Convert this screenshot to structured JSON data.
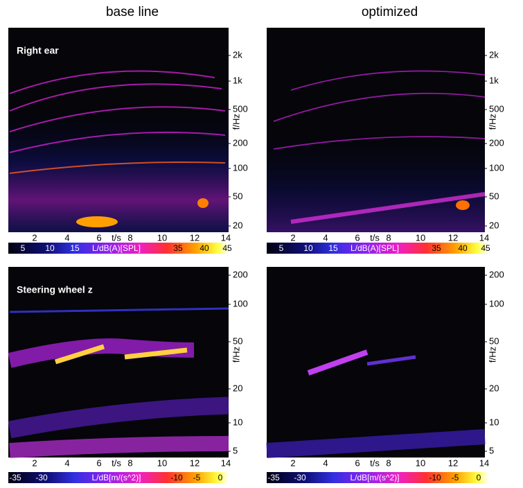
{
  "columns": [
    "base line",
    "optimized"
  ],
  "rows": [
    {
      "label": "Right ear",
      "ylabel": "f/Hz",
      "xlabel": "t/s",
      "yticks": [
        "2k",
        "1k",
        "500",
        "200",
        "100",
        "50",
        "20"
      ],
      "xticks": [
        "2",
        "4",
        "6",
        "8",
        "10",
        "12",
        "14"
      ],
      "colorbar": {
        "title": "L/dB(A)[SPL]",
        "labels": [
          "5",
          "10",
          "15",
          "35",
          "40",
          "45"
        ]
      }
    },
    {
      "label": "Steering wheel z",
      "ylabel": "f/Hz",
      "xlabel": "t/s",
      "yticks": [
        "200",
        "100",
        "50",
        "20",
        "10",
        "5"
      ],
      "xticks": [
        "2",
        "4",
        "6",
        "8",
        "10",
        "12",
        "14"
      ],
      "colorbar": {
        "title": "L/dB[m/(s^2)]",
        "labels": [
          "-35",
          "-30",
          "-10",
          "-5",
          "0"
        ]
      }
    }
  ]
}
